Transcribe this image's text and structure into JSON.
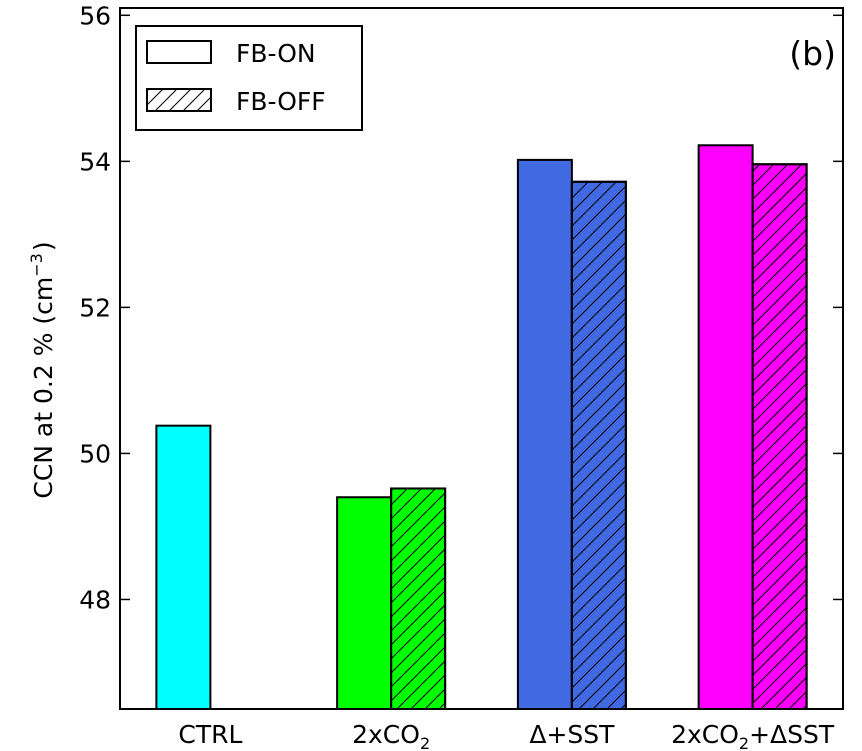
{
  "chart_data": {
    "type": "bar",
    "panel_label": "(b)",
    "ylabel": "CCN at 0.2 % (cm",
    "ylabel_unit_exponent": "−3",
    "ylabel_close": ")",
    "ylim": [
      46.5,
      56.1
    ],
    "yticks": [
      48,
      50,
      52,
      54,
      56
    ],
    "categories": [
      {
        "main": "CTRL",
        "sub": "",
        "suffix": ""
      },
      {
        "main": "2xCO",
        "sub": "2",
        "suffix": ""
      },
      {
        "main": "Δ+SST",
        "sub": "",
        "suffix": ""
      },
      {
        "main": "2xCO",
        "sub": "2",
        "suffix": "+ΔSST"
      }
    ],
    "category_colors": [
      "#00ffff",
      "#00ff00",
      "#4169e1",
      "#ff00ff"
    ],
    "series": [
      {
        "name": "FB-ON",
        "hatch": false,
        "values": [
          50.38,
          49.4,
          54.02,
          54.22
        ]
      },
      {
        "name": "FB-OFF",
        "hatch": true,
        "values": [
          null,
          49.52,
          53.72,
          53.96
        ]
      }
    ],
    "legend_position": "top-left",
    "grid": false
  }
}
